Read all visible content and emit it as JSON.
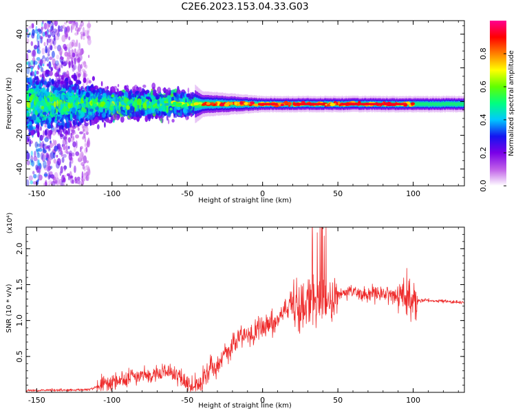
{
  "title": "C2E6.2023.153.04.33.G03",
  "chart_data": [
    {
      "type": "heatmap",
      "xlabel": "Height of straight line (km)",
      "ylabel": "Frequency (Hz)",
      "xlim": [
        -157,
        134
      ],
      "ylim": [
        -50,
        48
      ],
      "xticks": [
        "-150",
        "-100",
        "-50",
        "0",
        "50",
        "100"
      ],
      "yticks": [
        "-40",
        "-20",
        "0",
        "20",
        "40"
      ],
      "colorbar": {
        "label": "Normalized spectral amplitude",
        "range": [
          0,
          1
        ],
        "ticks": [
          "0.0",
          "0.2",
          "0.4",
          "0.6",
          "0.8"
        ],
        "colormap": [
          "#ffffff",
          "#c060e8",
          "#7a00e8",
          "#1414f0",
          "#00c8ff",
          "#00ff80",
          "#60ff00",
          "#ffff00",
          "#ff8000",
          "#ff0000",
          "#ff0090"
        ]
      },
      "band_center_hz": -1.5,
      "band_halfwidth_hz": {
        "-157": 22,
        "-100": 9,
        "-50": 8,
        "-40": 4,
        "0": 2.5,
        "134": 2.5
      },
      "grid": false
    },
    {
      "type": "line",
      "xlabel": "Height of straight line (km)",
      "ylabel": "SNR (10 * v/v)",
      "multiplier": "(x10⁴)",
      "xlim": [
        -157,
        134
      ],
      "ylim": [
        0,
        2.3
      ],
      "xticks": [
        "-150",
        "-100",
        "-50",
        "0",
        "50",
        "100"
      ],
      "yticks": [
        "0.5",
        "1.0",
        "1.5",
        "2.0"
      ],
      "color": "#ee2a2a",
      "series": [
        {
          "x": [
            -157,
            -140,
            -125,
            -115,
            -105,
            -100,
            -90,
            -80,
            -70,
            -60,
            -55,
            -50,
            -45,
            -40,
            -35,
            -30,
            -25,
            -20,
            -15,
            -10,
            -5,
            0,
            5,
            10,
            15,
            20,
            25,
            30,
            35,
            40,
            45,
            50,
            55,
            60,
            65,
            70,
            75,
            80,
            85,
            90,
            95,
            100,
            103,
            110,
            120,
            134
          ],
          "values": [
            0.02,
            0.03,
            0.03,
            0.04,
            0.12,
            0.14,
            0.2,
            0.24,
            0.25,
            0.28,
            0.22,
            0.12,
            0.08,
            0.15,
            0.3,
            0.4,
            0.55,
            0.65,
            0.75,
            0.8,
            0.85,
            0.9,
            0.95,
            1.0,
            1.1,
            1.2,
            1.25,
            1.3,
            1.3,
            1.3,
            1.28,
            1.35,
            1.38,
            1.4,
            1.38,
            1.37,
            1.37,
            1.36,
            1.35,
            1.36,
            1.3,
            1.3,
            1.28,
            1.28,
            1.27,
            1.25
          ]
        }
      ],
      "grid": false
    }
  ]
}
